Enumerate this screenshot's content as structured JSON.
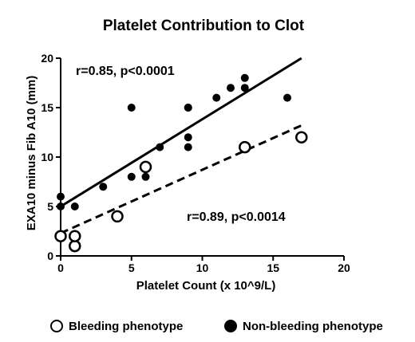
{
  "chart_data": {
    "type": "scatter",
    "title": "Platelet Contribution to Clot",
    "xlabel": "Platelet Count (x 10^9/L)",
    "ylabel": "EXA10 minus Fib A10 (mm)",
    "xlim": [
      0,
      20
    ],
    "ylim": [
      0,
      20
    ],
    "xticks": [
      "0",
      "5",
      "10",
      "15",
      "20"
    ],
    "yticks": [
      "0",
      "5",
      "10",
      "15",
      "20"
    ],
    "grid": false,
    "legend_position": "bottom",
    "series": [
      {
        "name": "Bleeding phenotype",
        "marker": "open-circle",
        "color": "#000000",
        "x": [
          0,
          1,
          1,
          4,
          6,
          13,
          17
        ],
        "y": [
          2,
          1,
          2,
          4,
          9,
          11,
          12
        ],
        "fit": {
          "x": [
            0,
            17
          ],
          "y": [
            2.3,
            13.2
          ],
          "style": "dashed"
        },
        "annotation": "r=0.89, p<0.0014"
      },
      {
        "name": "Non-bleeding phenotype",
        "marker": "filled-circle",
        "color": "#000000",
        "x": [
          0,
          0,
          1,
          3,
          5,
          5,
          6,
          7,
          9,
          9,
          9,
          9,
          11,
          12,
          13,
          13,
          16
        ],
        "y": [
          5,
          6,
          5,
          7,
          8,
          15,
          8,
          11,
          11,
          12,
          15,
          15,
          16,
          17,
          17,
          18,
          16
        ],
        "fit": {
          "x": [
            0,
            17
          ],
          "y": [
            5.0,
            20.0
          ],
          "style": "solid"
        },
        "annotation": "r=0.85, p<0.0001"
      }
    ]
  }
}
